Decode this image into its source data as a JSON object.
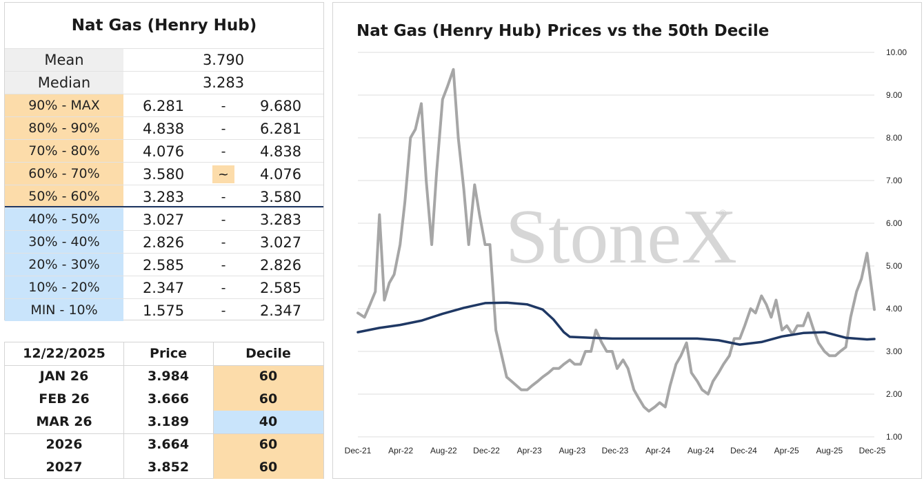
{
  "stats": {
    "title": "Nat Gas (Henry Hub)",
    "mean": {
      "label": "Mean",
      "value": "3.790"
    },
    "median": {
      "label": "Median",
      "value": "3.283"
    },
    "deciles": [
      {
        "label": "90% - MAX",
        "low": "6.281",
        "sep": "-",
        "high": "9.680",
        "color": "#fcdcaa"
      },
      {
        "label": "80% - 90%",
        "low": "4.838",
        "sep": "-",
        "high": "6.281",
        "color": "#fcdcaa"
      },
      {
        "label": "70% - 80%",
        "low": "4.076",
        "sep": "-",
        "high": "4.838",
        "color": "#fcdcaa"
      },
      {
        "label": "60% - 70%",
        "low": "3.580",
        "sep": "~",
        "high": "4.076",
        "color": "#fcdcaa"
      },
      {
        "label": "50% - 60%",
        "low": "3.283",
        "sep": "-",
        "high": "3.580",
        "color": "#fcdcaa"
      },
      {
        "label": "40% - 50%",
        "low": "3.027",
        "sep": "-",
        "high": "3.283",
        "color": "#c9e4fb"
      },
      {
        "label": "30% - 40%",
        "low": "2.826",
        "sep": "-",
        "high": "3.027",
        "color": "#c9e4fb"
      },
      {
        "label": "20% - 30%",
        "low": "2.585",
        "sep": "-",
        "high": "2.826",
        "color": "#c9e4fb"
      },
      {
        "label": "10% - 20%",
        "low": "2.347",
        "sep": "-",
        "high": "2.585",
        "color": "#c9e4fb"
      },
      {
        "label": "MIN - 10%",
        "low": "1.575",
        "sep": "-",
        "high": "2.347",
        "color": "#c9e4fb"
      }
    ]
  },
  "price_table": {
    "headers": [
      "12/22/2025",
      "Price",
      "Decile"
    ],
    "rows": [
      {
        "contract": "JAN 26",
        "price": "3.984",
        "decile": "60",
        "color": "#fcdcaa"
      },
      {
        "contract": "FEB 26",
        "price": "3.666",
        "decile": "60",
        "color": "#fcdcaa"
      },
      {
        "contract": "MAR 26",
        "price": "3.189",
        "decile": "40",
        "color": "#c9e4fb"
      },
      {
        "contract": "2026",
        "price": "3.664",
        "decile": "60",
        "color": "#fcdcaa"
      },
      {
        "contract": "2027",
        "price": "3.852",
        "decile": "60",
        "color": "#fcdcaa"
      }
    ]
  },
  "chart": {
    "watermark": "StoneX",
    "watermark_mark": "®"
  },
  "chart_data": {
    "type": "line",
    "title": "Nat Gas (Henry Hub) Prices vs the 50th Decile",
    "xlabel": "",
    "ylabel": "",
    "x_tick_labels": [
      "Dec-21",
      "Apr-22",
      "Aug-22",
      "Dec-22",
      "Apr-23",
      "Aug-23",
      "Dec-23",
      "Apr-24",
      "Aug-24",
      "Dec-24",
      "Apr-25",
      "Aug-25",
      "Dec-25"
    ],
    "y_tick_labels": [
      "1.00",
      "2.00",
      "3.00",
      "4.00",
      "5.00",
      "6.00",
      "7.00",
      "8.00",
      "9.00",
      "10.00"
    ],
    "ylim": [
      1,
      10
    ],
    "y_axis_side": "right",
    "grid": "horizontal",
    "legend": "none",
    "series": [
      {
        "color": "#a6a6a6",
        "x": [
          "2021-12-01",
          "2021-12-20",
          "2022-01-05",
          "2022-01-20",
          "2022-02-01",
          "2022-02-15",
          "2022-03-01",
          "2022-03-15",
          "2022-04-01",
          "2022-04-15",
          "2022-05-01",
          "2022-05-15",
          "2022-06-01",
          "2022-06-15",
          "2022-07-01",
          "2022-07-15",
          "2022-08-01",
          "2022-08-15",
          "2022-09-01",
          "2022-09-15",
          "2022-10-01",
          "2022-10-15",
          "2022-11-01",
          "2022-11-15",
          "2022-12-01",
          "2022-12-15",
          "2023-01-01",
          "2023-01-15",
          "2023-02-01",
          "2023-02-15",
          "2023-03-01",
          "2023-03-15",
          "2023-04-01",
          "2023-04-15",
          "2023-05-01",
          "2023-05-15",
          "2023-06-01",
          "2023-06-15",
          "2023-07-01",
          "2023-07-15",
          "2023-08-01",
          "2023-08-15",
          "2023-09-01",
          "2023-09-15",
          "2023-10-01",
          "2023-10-15",
          "2023-11-01",
          "2023-11-15",
          "2023-12-01",
          "2023-12-15",
          "2024-01-01",
          "2024-01-15",
          "2024-02-01",
          "2024-02-15",
          "2024-03-01",
          "2024-03-15",
          "2024-04-01",
          "2024-04-15",
          "2024-05-01",
          "2024-05-15",
          "2024-06-01",
          "2024-06-15",
          "2024-07-01",
          "2024-07-15",
          "2024-08-01",
          "2024-08-15",
          "2024-09-01",
          "2024-09-15",
          "2024-10-01",
          "2024-10-15",
          "2024-11-01",
          "2024-11-15",
          "2024-12-01",
          "2024-12-15",
          "2025-01-01",
          "2025-01-15",
          "2025-02-01",
          "2025-02-15",
          "2025-03-01",
          "2025-03-15",
          "2025-04-01",
          "2025-04-15",
          "2025-05-01",
          "2025-05-15",
          "2025-06-01",
          "2025-06-15",
          "2025-07-01",
          "2025-07-15",
          "2025-08-01",
          "2025-08-15",
          "2025-09-01",
          "2025-09-15",
          "2025-10-01",
          "2025-10-15",
          "2025-11-01",
          "2025-11-15",
          "2025-12-01",
          "2025-12-22"
        ],
        "values": [
          3.9,
          3.8,
          4.1,
          4.4,
          6.2,
          4.2,
          4.6,
          4.8,
          5.5,
          6.5,
          8.0,
          8.2,
          8.8,
          7.0,
          5.5,
          7.2,
          8.9,
          9.2,
          9.6,
          8.0,
          6.8,
          5.5,
          6.9,
          6.2,
          5.5,
          5.5,
          3.5,
          3.0,
          2.4,
          2.3,
          2.2,
          2.1,
          2.1,
          2.2,
          2.3,
          2.4,
          2.5,
          2.6,
          2.6,
          2.7,
          2.8,
          2.7,
          2.7,
          3.0,
          3.0,
          3.5,
          3.2,
          3.0,
          3.0,
          2.6,
          2.8,
          2.6,
          2.1,
          1.9,
          1.7,
          1.6,
          1.7,
          1.8,
          1.7,
          2.2,
          2.7,
          2.9,
          3.2,
          2.5,
          2.3,
          2.1,
          2.0,
          2.3,
          2.5,
          2.7,
          2.9,
          3.3,
          3.3,
          3.6,
          4.0,
          3.9,
          4.3,
          4.1,
          3.8,
          4.2,
          3.5,
          3.6,
          3.4,
          3.6,
          3.6,
          3.9,
          3.5,
          3.2,
          3.0,
          2.9,
          2.9,
          3.0,
          3.1,
          3.8,
          4.4,
          4.7,
          5.3,
          3.98
        ]
      },
      {
        "color": "#1f3864",
        "x": [
          "2021-12-01",
          "2022-02-01",
          "2022-04-01",
          "2022-06-01",
          "2022-08-01",
          "2022-10-01",
          "2022-12-01",
          "2023-02-01",
          "2023-04-01",
          "2023-05-15",
          "2023-06-15",
          "2023-07-15",
          "2023-08-01",
          "2023-10-01",
          "2023-12-01",
          "2024-02-01",
          "2024-04-01",
          "2024-06-01",
          "2024-08-01",
          "2024-10-01",
          "2024-12-01",
          "2025-02-01",
          "2025-04-01",
          "2025-06-01",
          "2025-08-01",
          "2025-10-01",
          "2025-12-01",
          "2025-12-22"
        ],
        "values": [
          3.45,
          3.55,
          3.62,
          3.72,
          3.88,
          4.02,
          4.13,
          4.14,
          4.1,
          3.98,
          3.75,
          3.45,
          3.34,
          3.32,
          3.3,
          3.3,
          3.3,
          3.3,
          3.3,
          3.26,
          3.16,
          3.22,
          3.35,
          3.43,
          3.45,
          3.32,
          3.28,
          3.29
        ]
      }
    ]
  }
}
